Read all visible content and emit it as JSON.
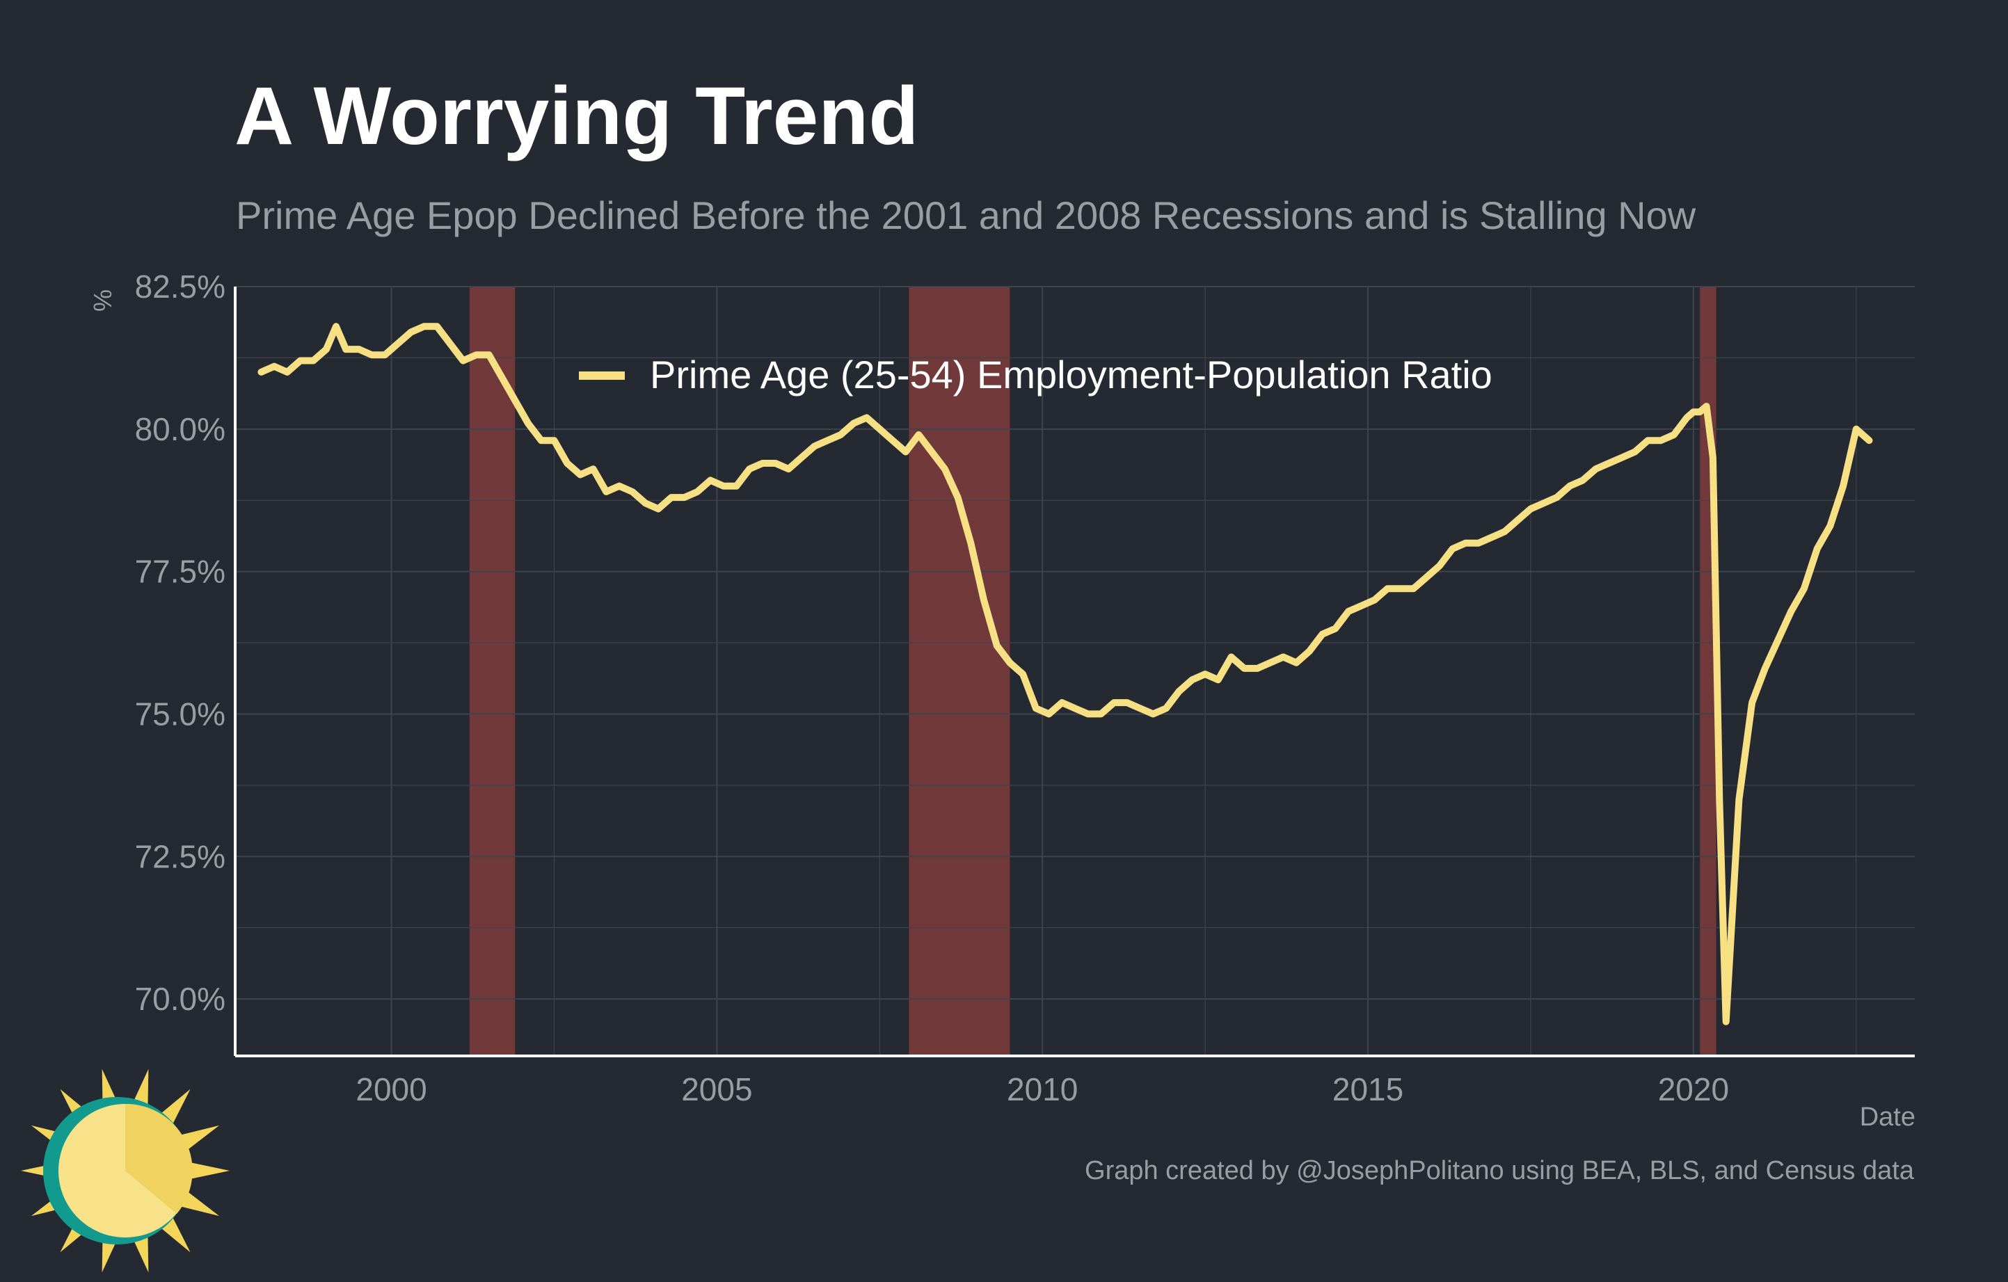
{
  "title": "A Worrying Trend",
  "subtitle": "Prime Age Epop Declined Before the 2001 and 2008 Recessions and is Stalling Now",
  "footer": "Graph created by @JosephPolitano using BEA, BLS, and Census data",
  "logo_icon": "sun-logo-icon",
  "colors": {
    "background": "#252932",
    "line": "#f7e084",
    "recession": "#7a3b3b",
    "grid": "#3f434c",
    "axis": "#ffffff",
    "text_muted": "#9a9da4"
  },
  "chart_data": {
    "type": "line",
    "title": "A Worrying Trend",
    "subtitle": "Prime Age Epop Declined Before the 2001 and 2008 Recessions and is Stalling Now",
    "xlabel": "Date",
    "ylabel": "%",
    "ylim": [
      69.0,
      82.5
    ],
    "xlim": [
      1997.6,
      2023.4
    ],
    "grid": true,
    "legend_position": "top-center",
    "y_ticks": [
      {
        "value": 70.0,
        "label": "70.0%"
      },
      {
        "value": 72.5,
        "label": "72.5%"
      },
      {
        "value": 75.0,
        "label": "75.0%"
      },
      {
        "value": 77.5,
        "label": "77.5%"
      },
      {
        "value": 80.0,
        "label": "80.0%"
      },
      {
        "value": 82.5,
        "label": "82.5%"
      }
    ],
    "x_ticks": [
      {
        "value": 2000,
        "label": "2000"
      },
      {
        "value": 2005,
        "label": "2005"
      },
      {
        "value": 2010,
        "label": "2010"
      },
      {
        "value": 2015,
        "label": "2015"
      },
      {
        "value": 2020,
        "label": "2020"
      }
    ],
    "recessions": [
      {
        "start": 2001.2,
        "end": 2001.9
      },
      {
        "start": 2007.95,
        "end": 2009.5
      },
      {
        "start": 2020.1,
        "end": 2020.35
      }
    ],
    "series": [
      {
        "name": "Prime Age (25-54) Employment-Population Ratio",
        "color": "#f7e084",
        "x": [
          1998.0,
          1998.2,
          1998.4,
          1998.6,
          1998.8,
          1999.0,
          1999.15,
          1999.3,
          1999.5,
          1999.7,
          1999.9,
          2000.1,
          2000.3,
          2000.5,
          2000.7,
          2000.9,
          2001.1,
          2001.3,
          2001.5,
          2001.7,
          2001.9,
          2002.1,
          2002.3,
          2002.5,
          2002.7,
          2002.9,
          2003.1,
          2003.3,
          2003.5,
          2003.7,
          2003.9,
          2004.1,
          2004.3,
          2004.5,
          2004.7,
          2004.9,
          2005.1,
          2005.3,
          2005.5,
          2005.7,
          2005.9,
          2006.1,
          2006.3,
          2006.5,
          2006.7,
          2006.9,
          2007.1,
          2007.3,
          2007.5,
          2007.7,
          2007.9,
          2008.1,
          2008.3,
          2008.5,
          2008.7,
          2008.9,
          2009.1,
          2009.3,
          2009.5,
          2009.7,
          2009.9,
          2010.1,
          2010.3,
          2010.5,
          2010.7,
          2010.9,
          2011.1,
          2011.3,
          2011.5,
          2011.7,
          2011.9,
          2012.1,
          2012.3,
          2012.5,
          2012.7,
          2012.9,
          2013.1,
          2013.3,
          2013.5,
          2013.7,
          2013.9,
          2014.1,
          2014.3,
          2014.5,
          2014.7,
          2014.9,
          2015.1,
          2015.3,
          2015.5,
          2015.7,
          2015.9,
          2016.1,
          2016.3,
          2016.5,
          2016.7,
          2016.9,
          2017.1,
          2017.3,
          2017.5,
          2017.7,
          2017.9,
          2018.1,
          2018.3,
          2018.5,
          2018.7,
          2018.9,
          2019.1,
          2019.3,
          2019.5,
          2019.7,
          2019.9,
          2020.0,
          2020.1,
          2020.2,
          2020.3,
          2020.4,
          2020.5,
          2020.7,
          2020.9,
          2021.1,
          2021.3,
          2021.5,
          2021.7,
          2021.9,
          2022.1,
          2022.3,
          2022.5,
          2022.7
        ],
        "values": [
          81.0,
          81.1,
          81.0,
          81.2,
          81.2,
          81.4,
          81.8,
          81.4,
          81.4,
          81.3,
          81.3,
          81.5,
          81.7,
          81.8,
          81.8,
          81.5,
          81.2,
          81.3,
          81.3,
          80.9,
          80.5,
          80.1,
          79.8,
          79.8,
          79.4,
          79.2,
          79.3,
          78.9,
          79.0,
          78.9,
          78.7,
          78.6,
          78.8,
          78.8,
          78.9,
          79.1,
          79.0,
          79.0,
          79.3,
          79.4,
          79.4,
          79.3,
          79.5,
          79.7,
          79.8,
          79.9,
          80.1,
          80.2,
          80.0,
          79.8,
          79.6,
          79.9,
          79.6,
          79.3,
          78.8,
          78.0,
          77.0,
          76.2,
          75.9,
          75.7,
          75.1,
          75.0,
          75.2,
          75.1,
          75.0,
          75.0,
          75.2,
          75.2,
          75.1,
          75.0,
          75.1,
          75.4,
          75.6,
          75.7,
          75.6,
          76.0,
          75.8,
          75.8,
          75.9,
          76.0,
          75.9,
          76.1,
          76.4,
          76.5,
          76.8,
          76.9,
          77.0,
          77.2,
          77.2,
          77.2,
          77.4,
          77.6,
          77.9,
          78.0,
          78.0,
          78.1,
          78.2,
          78.4,
          78.6,
          78.7,
          78.8,
          79.0,
          79.1,
          79.3,
          79.4,
          79.5,
          79.6,
          79.8,
          79.8,
          79.9,
          80.2,
          80.3,
          80.3,
          80.4,
          79.5,
          73.5,
          69.6,
          73.5,
          75.2,
          75.8,
          76.3,
          76.8,
          77.2,
          77.9,
          78.3,
          79.0,
          80.0,
          79.8
        ]
      }
    ]
  }
}
